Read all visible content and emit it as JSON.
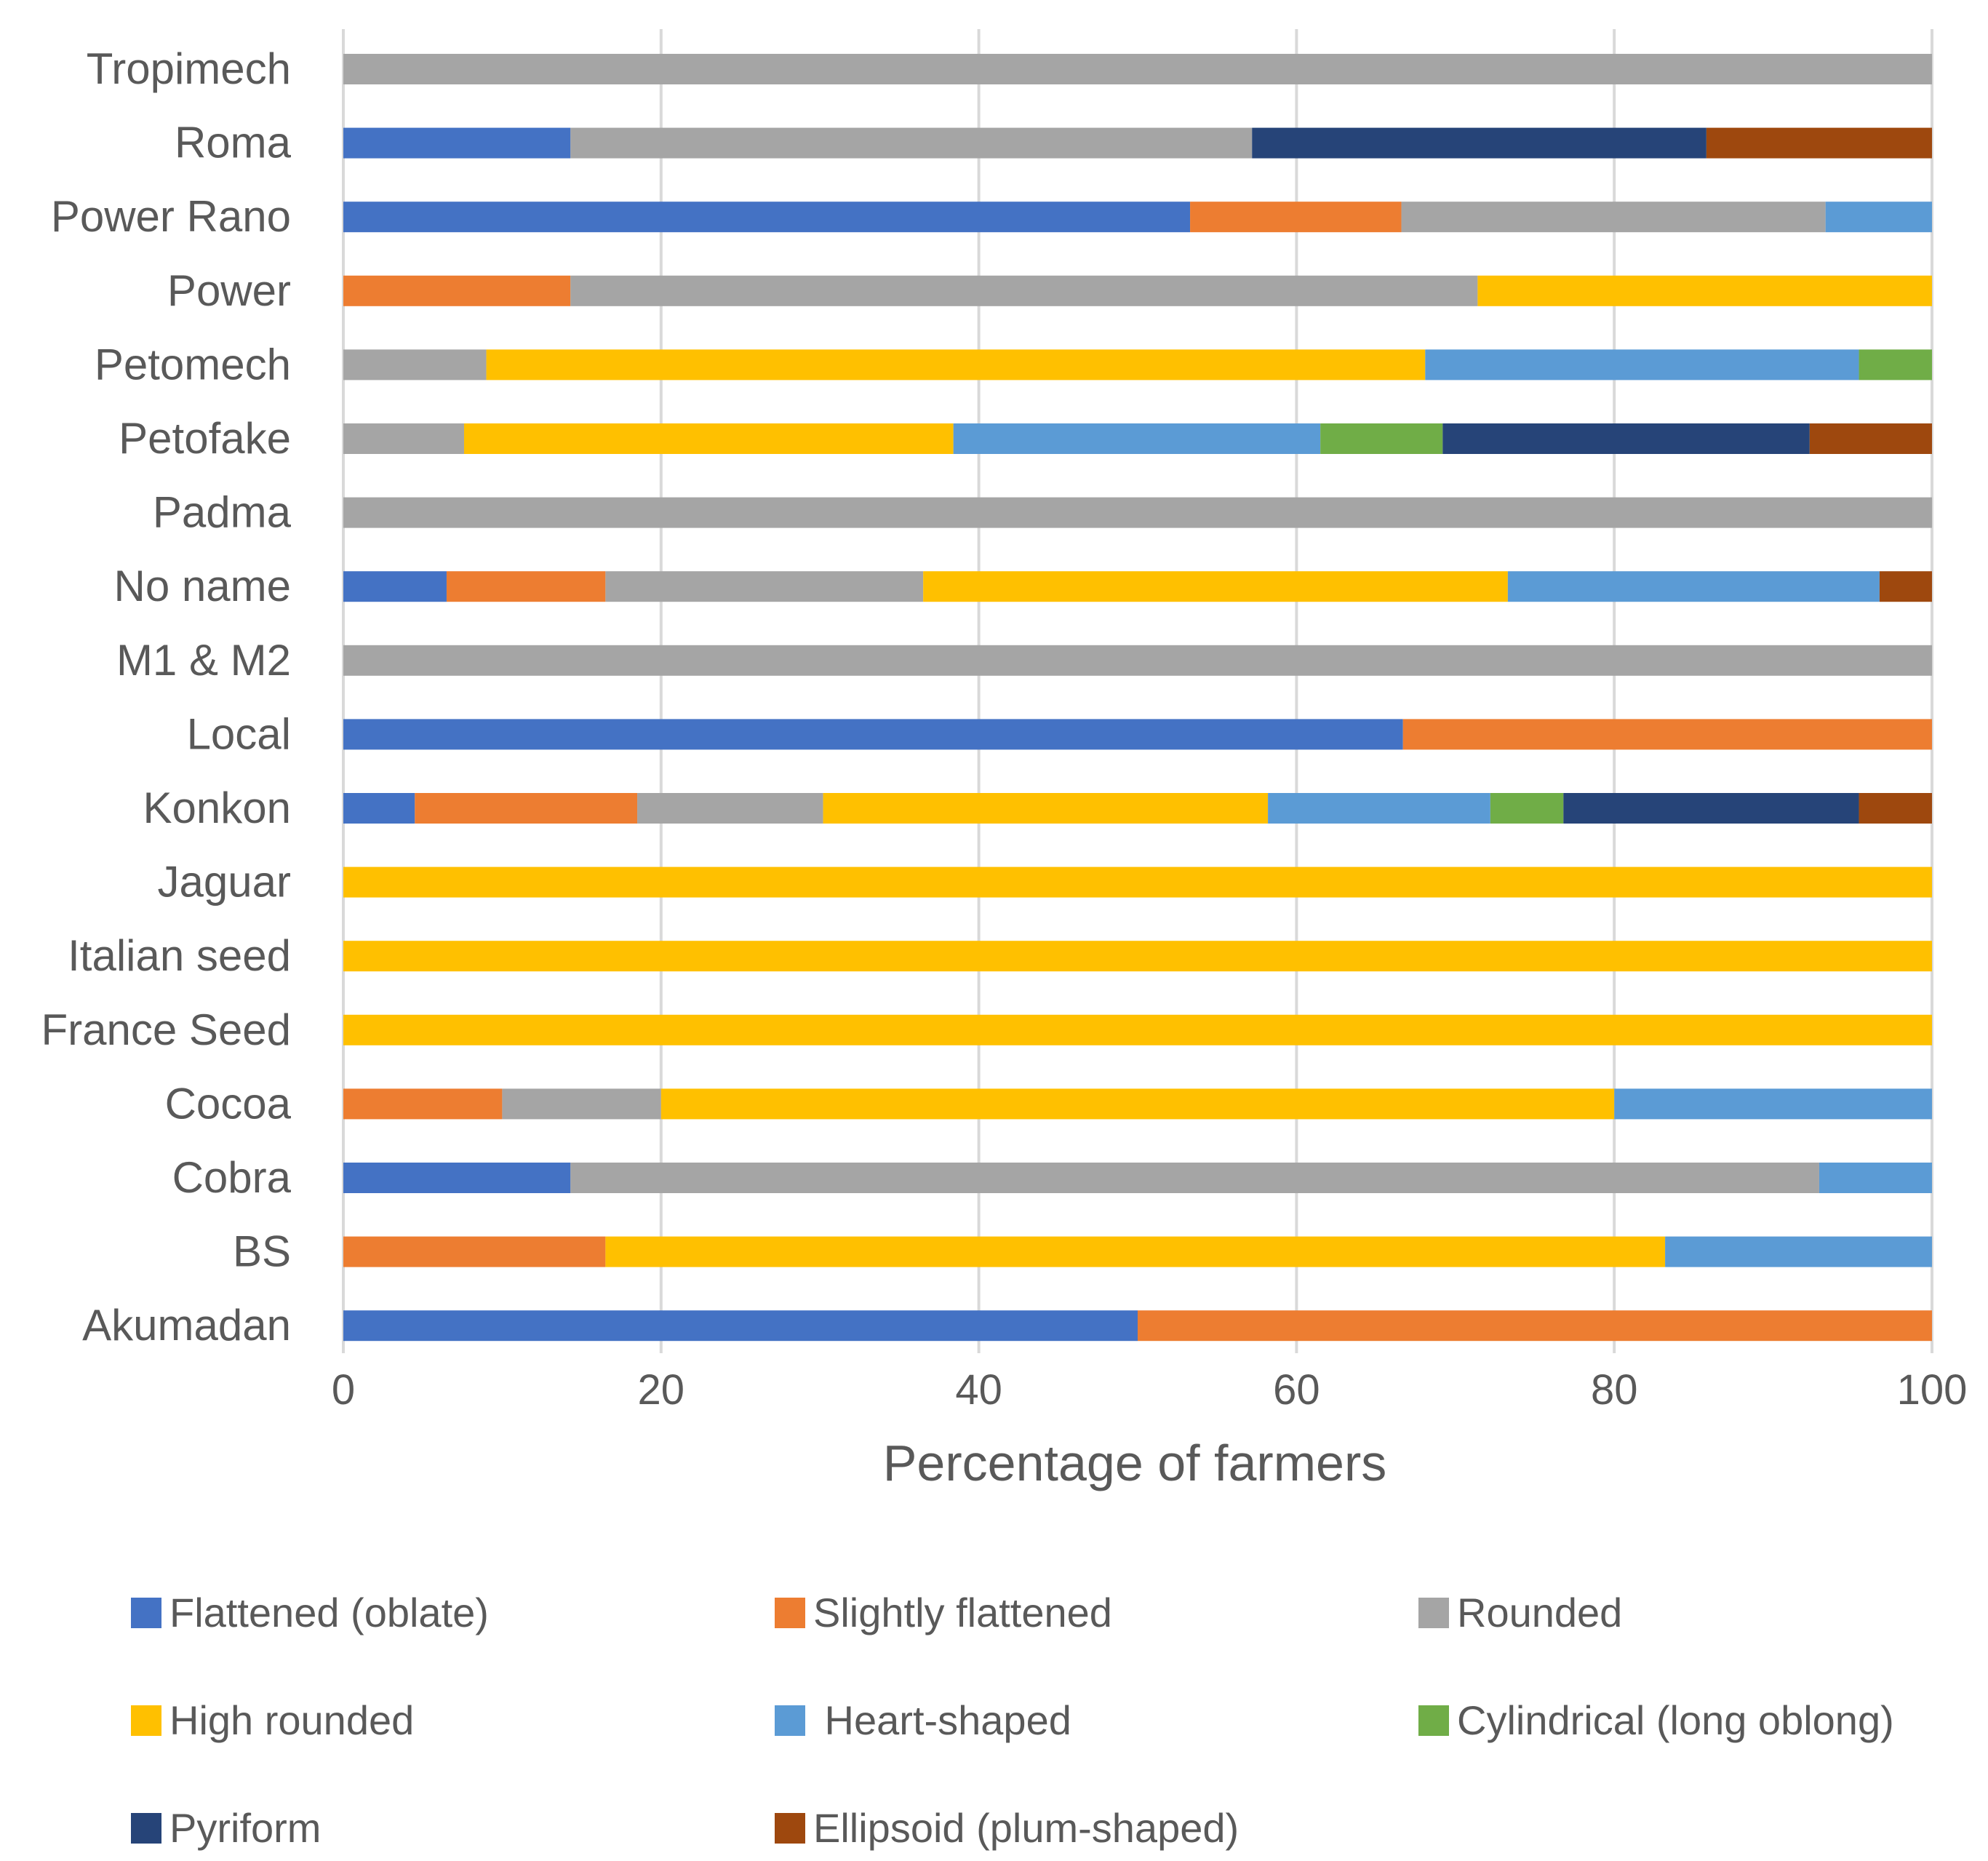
{
  "chart_data": {
    "type": "bar",
    "orientation": "horizontal",
    "stacked": true,
    "title": "",
    "xlabel": "Percentage of farmers",
    "ylabel": "",
    "xlim": [
      0,
      100
    ],
    "xticks": [
      0,
      20,
      40,
      60,
      80,
      100
    ],
    "grid": true,
    "legend_position": "bottom",
    "categories": [
      "Tropimech",
      "Roma",
      "Power Rano",
      "Power",
      "Petomech",
      "Petofake",
      "Padma",
      "No name",
      "M1 & M2",
      "Local",
      "Konkon",
      "Jaguar",
      "Italian seed",
      "France Seed",
      "Cocoa",
      "Cobra",
      "BS",
      "Akumadan"
    ],
    "series": [
      {
        "name": "Flattened (oblate)",
        "color": "#4472c4",
        "values": [
          0,
          14.3,
          53.3,
          0,
          0,
          0,
          0,
          6.5,
          0,
          66.7,
          4.5,
          0,
          0,
          0,
          0,
          14.3,
          0,
          50
        ]
      },
      {
        "name": "Slightly flattened",
        "color": "#ed7d31",
        "values": [
          0,
          0,
          13.3,
          14.3,
          0,
          0,
          0,
          10,
          0,
          33.3,
          14,
          0,
          0,
          0,
          10,
          0,
          16.5,
          50
        ]
      },
      {
        "name": "Rounded",
        "color": "#a5a5a5",
        "values": [
          100,
          42.9,
          26.7,
          57.1,
          9,
          7.6,
          100,
          20,
          100,
          0,
          11.7,
          0,
          0,
          0,
          10,
          78.6,
          0,
          0
        ]
      },
      {
        "name": "High rounded",
        "color": "#ffc000",
        "values": [
          0,
          0,
          0,
          28.6,
          59.1,
          30.8,
          0,
          36.8,
          0,
          0,
          28,
          100,
          100,
          100,
          60,
          0,
          66.7,
          0
        ]
      },
      {
        "name": " Heart-shaped",
        "color": "#5b9bd5",
        "values": [
          0,
          0,
          6.7,
          0,
          27.3,
          23.1,
          0,
          23.4,
          0,
          0,
          14,
          0,
          0,
          0,
          20,
          7.1,
          16.8,
          0
        ]
      },
      {
        "name": "Cylindrical (long oblong)",
        "color": "#70ad47",
        "values": [
          0,
          0,
          0,
          0,
          4.6,
          7.7,
          0,
          0,
          0,
          0,
          4.6,
          0,
          0,
          0,
          0,
          0,
          0,
          0
        ]
      },
      {
        "name": "Pyriform",
        "color": "#264478",
        "values": [
          0,
          28.6,
          0,
          0,
          0,
          23.1,
          0,
          0,
          0,
          0,
          18.6,
          0,
          0,
          0,
          0,
          0,
          0,
          0
        ]
      },
      {
        "name": "Ellipsoid (plum-shaped)",
        "color": "#9e480e",
        "values": [
          0,
          14.2,
          0,
          0,
          0,
          7.7,
          0,
          3.3,
          0,
          0,
          4.6,
          0,
          0,
          0,
          0,
          0,
          0,
          0
        ]
      }
    ]
  }
}
